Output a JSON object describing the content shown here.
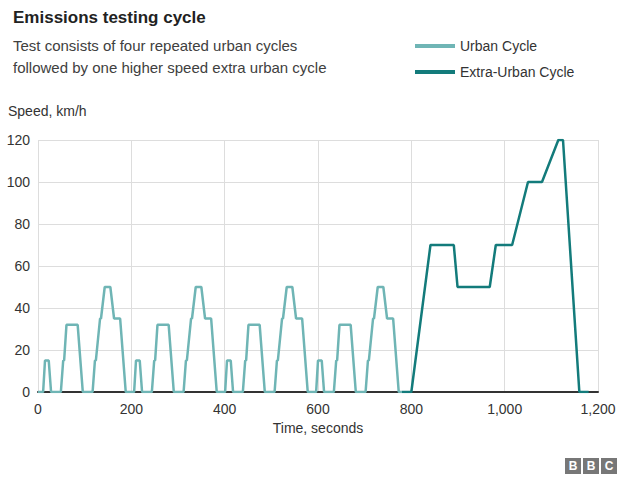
{
  "chart_data": {
    "type": "line",
    "title": "Emissions testing cycle",
    "subtitle": "Test consists of four repeated urban cycles\nfollowed by one higher speed extra urban cycle",
    "y_label": "Speed, km/h",
    "x_label": "Time, seconds",
    "source": "BBC",
    "xlim": [
      0,
      1200
    ],
    "xticks": [
      0,
      200,
      400,
      600,
      800,
      1000,
      1200
    ],
    "ylim": [
      0,
      120
    ],
    "yticks": [
      0,
      20,
      40,
      60,
      80,
      100,
      120
    ],
    "grid": true,
    "legend": "upper right",
    "series": [
      {
        "name": "Urban Cycle",
        "color": "#6fb5b5",
        "x": [
          0,
          11,
          15,
          23,
          28,
          49,
          54,
          56,
          61,
          85,
          96,
          117,
          122,
          124,
          133,
          135,
          143,
          155,
          163,
          176,
          188,
          195,
          206,
          210,
          218,
          223,
          244,
          249,
          251,
          256,
          280,
          291,
          312,
          317,
          319,
          328,
          330,
          338,
          350,
          358,
          371,
          383,
          390,
          401,
          405,
          413,
          418,
          439,
          444,
          446,
          451,
          475,
          486,
          507,
          512,
          514,
          523,
          525,
          533,
          545,
          553,
          566,
          578,
          585,
          596,
          600,
          608,
          613,
          634,
          639,
          641,
          646,
          670,
          681,
          702,
          707,
          709,
          718,
          720,
          728,
          740,
          748,
          761,
          773,
          780
        ],
        "values": [
          0,
          0,
          15,
          15,
          0,
          0,
          15,
          15,
          32,
          32,
          0,
          0,
          15,
          15,
          35,
          35,
          50,
          50,
          35,
          35,
          0,
          0,
          0,
          15,
          15,
          0,
          0,
          15,
          15,
          32,
          32,
          0,
          0,
          15,
          15,
          35,
          35,
          50,
          50,
          35,
          35,
          0,
          0,
          0,
          15,
          15,
          0,
          0,
          15,
          15,
          32,
          32,
          0,
          0,
          15,
          15,
          35,
          35,
          50,
          50,
          35,
          35,
          0,
          0,
          0,
          15,
          15,
          0,
          0,
          15,
          15,
          32,
          32,
          0,
          0,
          15,
          15,
          35,
          35,
          50,
          50,
          35,
          35,
          0,
          0
        ]
      },
      {
        "name": "Extra-Urban Cycle",
        "color": "#137b7b",
        "x": [
          780,
          800,
          841,
          891,
          899,
          968,
          981,
          1016,
          1050,
          1080,
          1115,
          1125,
          1160,
          1180
        ],
        "values": [
          0,
          0,
          70,
          70,
          50,
          50,
          70,
          70,
          100,
          100,
          120,
          120,
          0,
          0
        ]
      }
    ]
  }
}
